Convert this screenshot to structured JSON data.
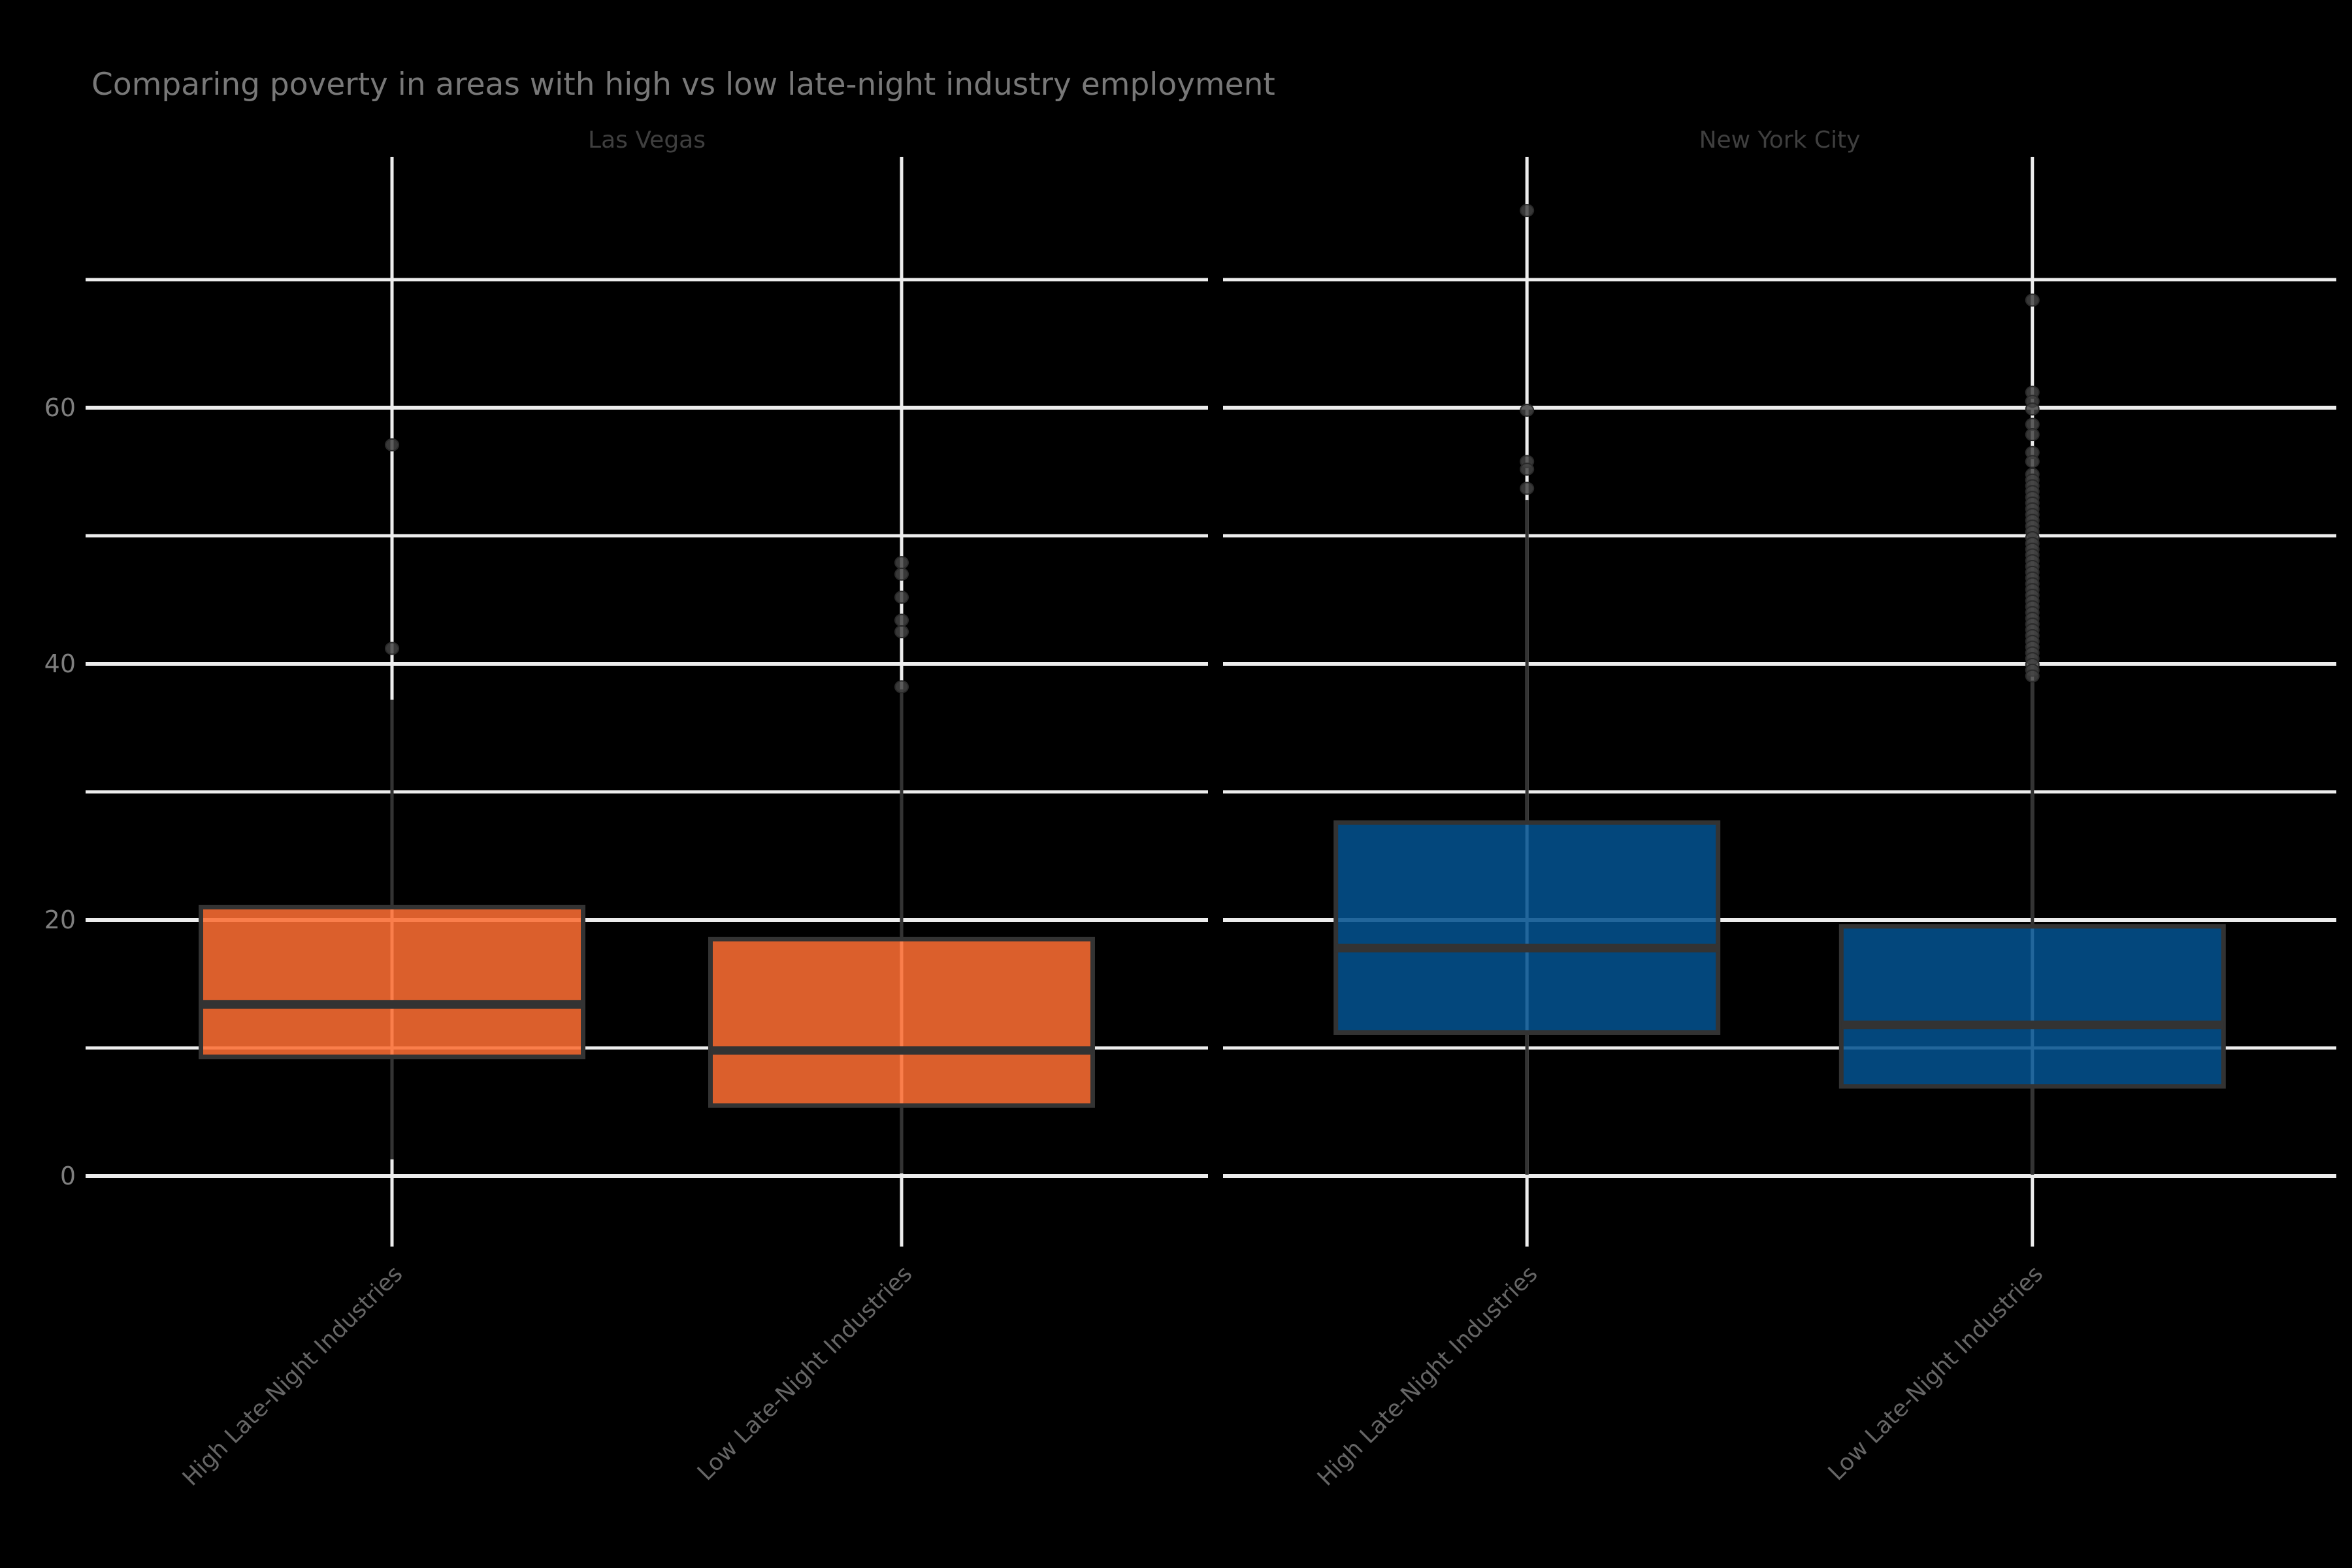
{
  "title": "Comparing poverty in areas with high vs low late-night industry employment",
  "colors": {
    "background": "#000000",
    "grid": "#ededed",
    "box_outline": "#333333",
    "whisker": "#333333",
    "outlier_fill": "#424242",
    "outlier_stroke": "#2a2a2a",
    "orange": "#fc6d33",
    "blue": "#04518f",
    "title_text": "#787878",
    "strip_text": "#3f3f3f",
    "y_tick_text": "#7e7e7e",
    "x_tick_text": "#666666"
  },
  "chart_data": {
    "type": "boxplot",
    "title": "Comparing poverty in areas with high vs low late-night industry employment",
    "orientation": "vertical",
    "grid": "on",
    "legend": "none",
    "y_axis": {
      "label": "",
      "major_ticks": [
        {
          "label": "0",
          "value": 0
        },
        {
          "label": "20",
          "value": 20
        },
        {
          "label": "40",
          "value": 40
        },
        {
          "label": "60",
          "value": 60
        }
      ],
      "minor_gridlines": [
        10,
        30,
        50,
        70
      ],
      "range": [
        -4,
        79.6
      ]
    },
    "panels": [
      {
        "label": "Las Vegas",
        "color": "#fc6d33",
        "boxes": [
          {
            "category": "High Late-Night Industries",
            "q1": 9.3,
            "median": 13.4,
            "q3": 21.0,
            "whisker_low": 1.3,
            "whisker_high": 37.2,
            "outliers": [
              57.1,
              41.2
            ]
          },
          {
            "category": "Low Late-Night Industries",
            "q1": 5.5,
            "median": 9.8,
            "q3": 18.5,
            "whisker_low": 0.2,
            "whisker_high": 38.0,
            "outliers": [
              47.9,
              47.0,
              45.2,
              43.4,
              42.5,
              38.2
            ]
          }
        ]
      },
      {
        "label": "New York City",
        "color": "#04518f",
        "boxes": [
          {
            "category": "High Late-Night Industries",
            "q1": 11.2,
            "median": 17.8,
            "q3": 27.6,
            "whisker_low": 0.1,
            "whisker_high": 52.8,
            "outliers": [
              75.4,
              59.8,
              55.8,
              55.2,
              53.7
            ]
          },
          {
            "category": "Low Late-Night Industries",
            "q1": 7.0,
            "median": 11.8,
            "q3": 19.5,
            "whisker_low": 0.1,
            "whisker_high": 38.7,
            "outliers": [
              68.4,
              61.2,
              60.5,
              59.9,
              58.7,
              57.9,
              56.5,
              55.8,
              54.8,
              54.35,
              53.9,
              53.45,
              53.0,
              52.55,
              52.1,
              51.65,
              51.2,
              50.75,
              50.3,
              49.85,
              49.4,
              48.95,
              48.5,
              48.05,
              47.6,
              47.15,
              46.7,
              46.25,
              45.8,
              45.35,
              44.9,
              44.45,
              44.0,
              43.55,
              43.1,
              42.65,
              42.2,
              41.75,
              41.3,
              40.85,
              40.4,
              39.95,
              39.5,
              39.05
            ]
          }
        ]
      }
    ]
  }
}
